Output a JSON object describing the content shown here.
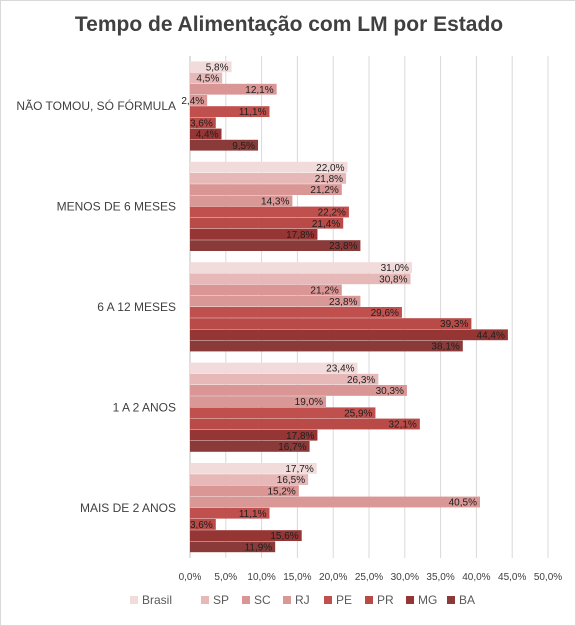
{
  "chart_data": {
    "type": "bar",
    "orientation": "horizontal",
    "title": "Tempo de Alimentação com LM por Estado",
    "categories": [
      "NÃO TOMOU, SÓ FÓRMULA",
      "MENOS DE 6 MESES",
      "6 A 12 MESES",
      "1 A 2 ANOS",
      "MAIS DE 2 ANOS"
    ],
    "series": [
      {
        "name": "Brasil",
        "color": "#F2DCDB",
        "values": [
          5.8,
          22.0,
          31.0,
          23.4,
          17.7
        ],
        "labels": [
          "5,8%",
          "22,0%",
          "31,0%",
          "23,4%",
          "17,7%"
        ]
      },
      {
        "name": "SP",
        "color": "#E6B9B8",
        "values": [
          4.5,
          21.8,
          30.8,
          26.3,
          16.5
        ],
        "labels": [
          "4,5%",
          "21,8%",
          "30,8%",
          "26,3%",
          "16,5%"
        ]
      },
      {
        "name": "SC",
        "color": "#DA9694",
        "values": [
          12.1,
          21.2,
          21.2,
          30.3,
          15.2
        ],
        "labels": [
          "12,1%",
          "21,2%",
          "21,2%",
          "30,3%",
          "15,2%"
        ]
      },
      {
        "name": "RJ",
        "color": "#D99795",
        "values": [
          2.4,
          14.3,
          23.8,
          19.0,
          40.5
        ],
        "labels": [
          "2,4%",
          "14,3%",
          "23,8%",
          "19,0%",
          "40,5%"
        ]
      },
      {
        "name": "PE",
        "color": "#C0504D",
        "values": [
          11.1,
          22.2,
          29.6,
          25.9,
          11.1
        ],
        "labels": [
          "11,1%",
          "22,2%",
          "29,6%",
          "25,9%",
          "11,1%"
        ]
      },
      {
        "name": "PR",
        "color": "#B84A47",
        "values": [
          3.6,
          21.4,
          39.3,
          32.1,
          3.6
        ],
        "labels": [
          "3,6%",
          "21,4%",
          "39,3%",
          "32,1%",
          "3,6%"
        ]
      },
      {
        "name": "MG",
        "color": "#963634",
        "values": [
          4.4,
          17.8,
          44.4,
          17.8,
          15.6
        ],
        "labels": [
          "4,4%",
          "17,8%",
          "44,4%",
          "17,8%",
          "15,6%"
        ]
      },
      {
        "name": "BA",
        "color": "#8A3B39",
        "values": [
          9.5,
          23.8,
          38.1,
          16.7,
          11.9
        ],
        "labels": [
          "9,5%",
          "23,8%",
          "38,1%",
          "16,7%",
          "11,9%"
        ]
      }
    ],
    "xlim": [
      0,
      50
    ],
    "xticks": [
      0,
      5,
      10,
      15,
      20,
      25,
      30,
      35,
      40,
      45,
      50
    ],
    "xtick_labels": [
      "0,0%",
      "5,0%",
      "10,0%",
      "15,0%",
      "20,0%",
      "25,0%",
      "30,0%",
      "35,0%",
      "40,0%",
      "45,0%",
      "50,0%"
    ],
    "grid": true,
    "legend": "bottom"
  }
}
